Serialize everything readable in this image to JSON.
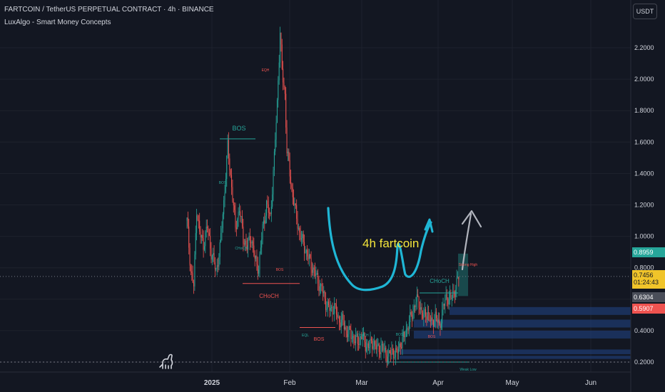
{
  "header": {
    "title": "FARTCOIN / TetherUS PERPETUAL CONTRACT · 4h · BINANCE",
    "indicator": "LuxAlgo - Smart Money Concepts"
  },
  "currency_button": "USDT",
  "price_tags": {
    "upper": "0.8959",
    "current": "0.7456",
    "countdown": "01:24:43",
    "grey": "0.6304",
    "red": "0.5907"
  },
  "annotation_text": "4h fartcoin",
  "colors": {
    "background": "#131722",
    "up": "#26a69a",
    "down": "#ef5350",
    "annotation_cyan": "#1fb6d5",
    "annotation_yellow": "#f5e63b",
    "zone_blue": "#1e3a6e"
  },
  "chart_data": {
    "type": "candlestick",
    "x_axis_labels": [
      "2025",
      "Feb",
      "Mar",
      "Apr",
      "May",
      "Jun"
    ],
    "y_axis_labels": [
      "0.2000",
      "0.4000",
      "0.6000",
      "0.8000",
      "1.0000",
      "1.2000",
      "1.4000",
      "1.6000",
      "1.8000",
      "2.0000",
      "2.2000"
    ],
    "y_ticks": [
      0.2,
      0.4,
      0.6,
      0.8,
      1.0,
      1.2,
      1.4,
      1.6,
      1.8,
      2.0,
      2.2
    ],
    "ylim": [
      0.14,
      2.45
    ],
    "price_path": [
      [
        0,
        1.1
      ],
      [
        4,
        0.78
      ],
      [
        7,
        0.68
      ],
      [
        10,
        1.18
      ],
      [
        13,
        1.02
      ],
      [
        17,
        0.95
      ],
      [
        21,
        1.06
      ],
      [
        25,
        0.9
      ],
      [
        30,
        0.78
      ],
      [
        34,
        0.92
      ],
      [
        38,
        1.22
      ],
      [
        42,
        1.57
      ],
      [
        46,
        1.32
      ],
      [
        50,
        1.05
      ],
      [
        54,
        1.18
      ],
      [
        58,
        0.99
      ],
      [
        62,
        0.93
      ],
      [
        66,
        1.0
      ],
      [
        70,
        0.85
      ],
      [
        74,
        0.8
      ],
      [
        78,
        1.05
      ],
      [
        82,
        1.2
      ],
      [
        86,
        1.12
      ],
      [
        90,
        1.5
      ],
      [
        93,
        1.85
      ],
      [
        96,
        2.3
      ],
      [
        98,
        2.05
      ],
      [
        101,
        1.9
      ],
      [
        103,
        1.55
      ],
      [
        105,
        1.45
      ],
      [
        108,
        1.3
      ],
      [
        112,
        1.15
      ],
      [
        116,
        1.02
      ],
      [
        120,
        0.95
      ],
      [
        124,
        0.88
      ],
      [
        128,
        0.82
      ],
      [
        132,
        0.76
      ],
      [
        136,
        0.7
      ],
      [
        140,
        0.64
      ],
      [
        144,
        0.56
      ],
      [
        148,
        0.53
      ],
      [
        152,
        0.55
      ],
      [
        156,
        0.47
      ],
      [
        160,
        0.46
      ],
      [
        164,
        0.4
      ],
      [
        168,
        0.38
      ],
      [
        172,
        0.35
      ],
      [
        176,
        0.33
      ],
      [
        180,
        0.37
      ],
      [
        184,
        0.31
      ],
      [
        188,
        0.3
      ],
      [
        192,
        0.33
      ],
      [
        196,
        0.28
      ],
      [
        200,
        0.3
      ],
      [
        204,
        0.26
      ],
      [
        208,
        0.24
      ],
      [
        212,
        0.27
      ],
      [
        216,
        0.25
      ],
      [
        220,
        0.32
      ],
      [
        224,
        0.36
      ],
      [
        228,
        0.44
      ],
      [
        232,
        0.5
      ],
      [
        236,
        0.6
      ],
      [
        240,
        0.56
      ],
      [
        244,
        0.48
      ],
      [
        248,
        0.52
      ],
      [
        252,
        0.44
      ],
      [
        256,
        0.5
      ],
      [
        260,
        0.42
      ],
      [
        264,
        0.55
      ],
      [
        268,
        0.62
      ],
      [
        272,
        0.6
      ],
      [
        276,
        0.66
      ],
      [
        280,
        0.74
      ]
    ],
    "smc_labels": [
      {
        "text": "BOS",
        "color": "#26a69a"
      },
      {
        "text": "CHoCH",
        "color": "#ef5350"
      },
      {
        "text": "BOS",
        "color": "#ef5350"
      },
      {
        "text": "CHoCH",
        "color": "#26a69a"
      },
      {
        "text": "Strong High",
        "color": "#ef5350"
      },
      {
        "text": "Weak Low",
        "color": "#26a69a"
      },
      {
        "text": "EQL",
        "color": "#26a69a"
      },
      {
        "text": "EQH",
        "color": "#ef5350"
      }
    ],
    "horizontal_levels": [
      0.745,
      0.2
    ]
  }
}
